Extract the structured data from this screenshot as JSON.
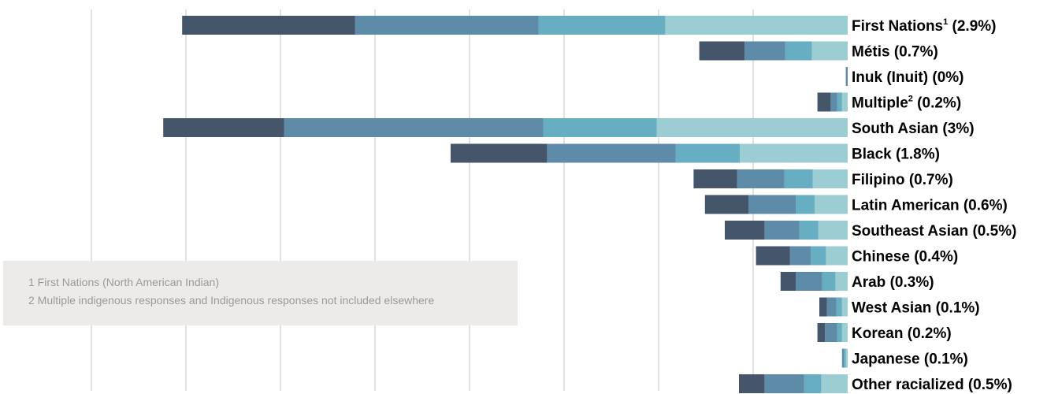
{
  "chart_data": {
    "type": "bar",
    "orientation": "horizontal",
    "stacked": true,
    "grid": true,
    "categories": [
      {
        "name": "First Nations",
        "sup": "1",
        "share": "(2.9%)"
      },
      {
        "name": "Métis",
        "sup": "",
        "share": "(0.7%)"
      },
      {
        "name": "Inuk (Inuit)",
        "sup": "",
        "share": "(0%)"
      },
      {
        "name": "Multiple",
        "sup": "2",
        "share": "(0.2%)"
      },
      {
        "name": "South Asian",
        "sup": "",
        "share": "(3%)"
      },
      {
        "name": "Black",
        "sup": "",
        "share": "(1.8%)"
      },
      {
        "name": "Filipino",
        "sup": "",
        "share": "(0.7%)"
      },
      {
        "name": "Latin American",
        "sup": "",
        "share": "(0.6%)"
      },
      {
        "name": "Southeast Asian",
        "sup": "",
        "share": "(0.5%)"
      },
      {
        "name": "Chinese",
        "sup": "",
        "share": "(0.4%)"
      },
      {
        "name": "Arab",
        "sup": "",
        "share": "(0.3%)"
      },
      {
        "name": "West Asian",
        "sup": "",
        "share": "(0.1%)"
      },
      {
        "name": "Korean",
        "sup": "",
        "share": "(0.2%)"
      },
      {
        "name": "Japanese",
        "sup": "",
        "share": "(0.1%)"
      },
      {
        "name": "Other racialized",
        "sup": "",
        "share": "(0.5%)"
      }
    ],
    "series": [
      {
        "color": "#9ccdd3",
        "values": [
          19.3,
          3.8,
          0,
          0.6,
          20.2,
          11.4,
          3.7,
          3.5,
          3.1,
          2.3,
          1.3,
          0.6,
          0.6,
          0.2,
          2.8
        ]
      },
      {
        "color": "#67aec2",
        "values": [
          13.4,
          2.8,
          0,
          0.5,
          12.0,
          6.8,
          3.0,
          2.0,
          2.0,
          1.6,
          1.4,
          0.6,
          0.5,
          0.2,
          1.8
        ]
      },
      {
        "color": "#5e8ba7",
        "values": [
          19.4,
          4.3,
          0.2,
          0.7,
          27.4,
          13.6,
          5.0,
          5.0,
          3.7,
          2.2,
          2.8,
          1.0,
          1.3,
          0.2,
          4.2
        ]
      },
      {
        "color": "#45566a",
        "values": [
          18.3,
          4.8,
          0,
          1.4,
          12.8,
          10.2,
          4.6,
          4.6,
          4.2,
          3.6,
          1.6,
          0.8,
          0.8,
          0,
          2.7
        ]
      }
    ],
    "xlim": [
      0,
      80
    ],
    "gridline_step": 10,
    "notes": [
      "1 First Nations (North American Indian)",
      "2 Multiple indigenous responses and Indigenous responses not included elsewhere"
    ]
  }
}
